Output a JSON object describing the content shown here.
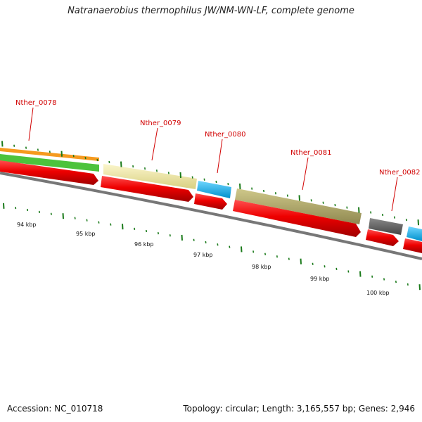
{
  "title": "Natranaerobius thermophilus JW/NM-WN-LF, complete genome",
  "footer": {
    "accession": "Accession: NC_010718",
    "stats": "Topology: circular; Length: 3,165,557 bp; Genes: 2,946"
  },
  "colors": {
    "gene_label": "#d10000",
    "tick": "#1a7a1a",
    "backbone": "#777777",
    "cds_forward": "#ee0000"
  },
  "gene_labels": [
    {
      "name": "Nther_0078"
    },
    {
      "name": "Nther_0079"
    },
    {
      "name": "Nther_0080"
    },
    {
      "name": "Nther_0081"
    },
    {
      "name": "Nther_0082"
    }
  ],
  "tick_labels": [
    "94 kbp",
    "95 kbp",
    "96 kbp",
    "97 kbp",
    "98 kbp",
    "99 kbp",
    "100 kbp"
  ],
  "feature_colors": {
    "orange": "#f59a1e",
    "green": "#4cc33c",
    "pale_yellow": "#f2eba6",
    "cyan": "#12b4ef",
    "olive": "#b3ac6a",
    "dark_gray": "#666666"
  }
}
